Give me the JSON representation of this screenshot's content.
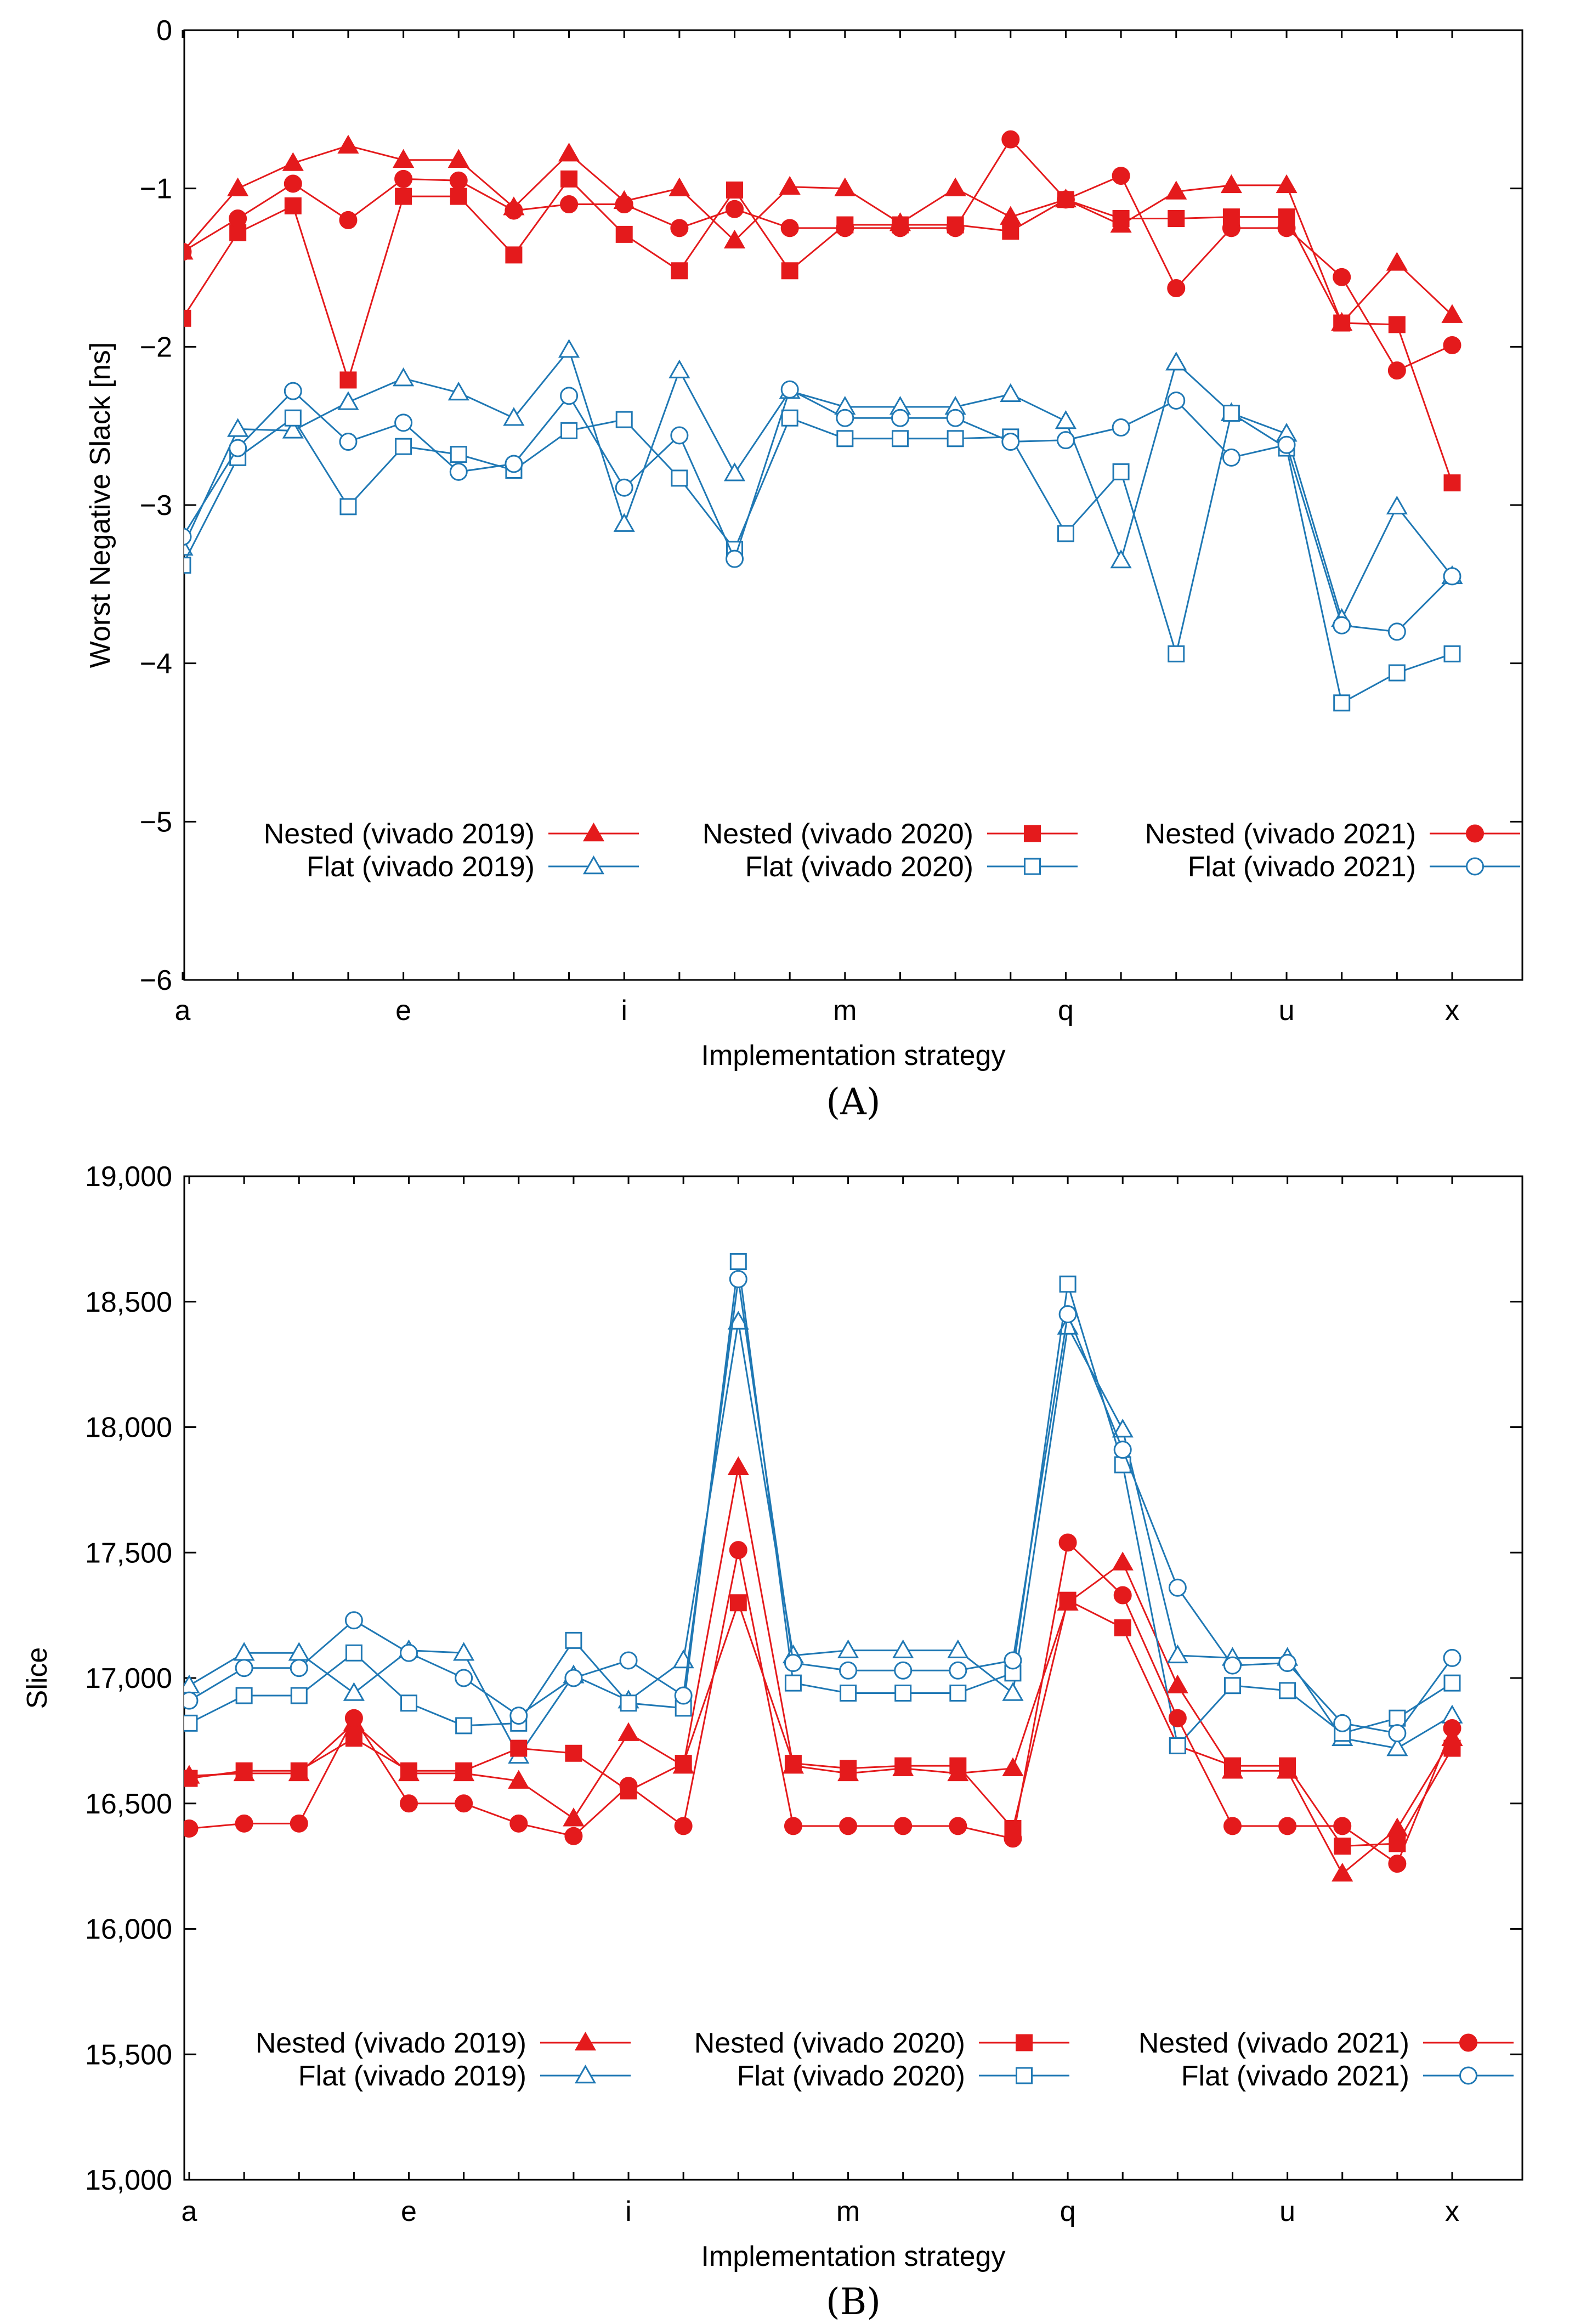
{
  "colors": {
    "nested": "#e41a1c",
    "flat": "#1f78b4"
  },
  "chart_data": [
    {
      "id": "A",
      "type": "line",
      "caption": "(A)",
      "xlabel": "Implementation strategy",
      "ylabel": "Worst Negative Slack [ns]",
      "ylim": [
        -6,
        0
      ],
      "yticks": [
        0,
        -1,
        -2,
        -3,
        -4,
        -5,
        -6
      ],
      "ytick_labels": [
        "0",
        "−1",
        "−2",
        "−3",
        "−4",
        "−5",
        "−6"
      ],
      "categories": [
        "a",
        "b",
        "c",
        "d",
        "e",
        "f",
        "g",
        "h",
        "i",
        "j",
        "k",
        "l",
        "m",
        "n",
        "o",
        "p",
        "q",
        "r",
        "s",
        "t",
        "u",
        "v",
        "w",
        "x"
      ],
      "xtick_labels": {
        "a": "a",
        "e": "e",
        "i": "i",
        "m": "m",
        "q": "q",
        "u": "u",
        "x": "x"
      },
      "grid": false,
      "legend_position": "bottom",
      "series": [
        {
          "name": "Nested (vivado 2019)",
          "group": "nested",
          "marker": "triangle",
          "filled": true,
          "values": [
            -1.4,
            -1.0,
            -0.84,
            -0.73,
            -0.82,
            -0.82,
            -1.12,
            -0.78,
            -1.08,
            -1.0,
            -1.33,
            -0.99,
            -1.0,
            -1.22,
            -1.0,
            -1.18,
            -1.07,
            -1.23,
            -1.02,
            -0.98,
            -0.98,
            -1.85,
            -1.47,
            -1.8
          ]
        },
        {
          "name": "Flat (vivado 2019)",
          "group": "flat",
          "marker": "triangle",
          "filled": false,
          "values": [
            -3.27,
            -2.52,
            -2.53,
            -2.35,
            -2.2,
            -2.29,
            -2.45,
            -2.02,
            -3.12,
            -2.15,
            -2.8,
            -2.28,
            -2.38,
            -2.38,
            -2.38,
            -2.3,
            -2.47,
            -3.35,
            -2.1,
            -2.42,
            -2.55,
            -3.72,
            -3.01,
            -3.45
          ]
        },
        {
          "name": "Nested (vivado 2020)",
          "group": "nested",
          "marker": "square",
          "filled": true,
          "values": [
            -1.82,
            -1.28,
            -1.11,
            -2.21,
            -1.05,
            -1.05,
            -1.42,
            -0.94,
            -1.29,
            -1.52,
            -1.01,
            -1.52,
            -1.23,
            -1.23,
            -1.23,
            -1.27,
            -1.07,
            -1.19,
            -1.19,
            -1.18,
            -1.18,
            -1.85,
            -1.86,
            -2.86
          ]
        },
        {
          "name": "Flat (vivado 2020)",
          "group": "flat",
          "marker": "square",
          "filled": false,
          "values": [
            -3.38,
            -2.7,
            -2.45,
            -3.01,
            -2.63,
            -2.68,
            -2.78,
            -2.53,
            -2.46,
            -2.83,
            -3.28,
            -2.45,
            -2.58,
            -2.58,
            -2.58,
            -2.57,
            -3.18,
            -2.79,
            -3.94,
            -2.42,
            -2.64,
            -4.25,
            -4.06,
            -3.94
          ]
        },
        {
          "name": "Nested (vivado 2021)",
          "group": "nested",
          "marker": "circle",
          "filled": true,
          "values": [
            -1.4,
            -1.19,
            -0.97,
            -1.2,
            -0.94,
            -0.95,
            -1.14,
            -1.1,
            -1.1,
            -1.25,
            -1.13,
            -1.25,
            -1.25,
            -1.25,
            -1.25,
            -0.69,
            -1.07,
            -0.92,
            -1.63,
            -1.25,
            -1.25,
            -1.56,
            -2.15,
            -1.99
          ]
        },
        {
          "name": "Flat (vivado 2021)",
          "group": "flat",
          "marker": "circle",
          "filled": false,
          "values": [
            -3.2,
            -2.64,
            -2.28,
            -2.6,
            -2.48,
            -2.79,
            -2.74,
            -2.31,
            -2.89,
            -2.56,
            -3.34,
            -2.27,
            -2.45,
            -2.45,
            -2.45,
            -2.6,
            -2.59,
            -2.51,
            -2.34,
            -2.7,
            -2.62,
            -3.76,
            -3.8,
            -3.45
          ]
        }
      ]
    },
    {
      "id": "B",
      "type": "line",
      "caption": "(B)",
      "xlabel": "Implementation strategy",
      "ylabel": "Slice",
      "ylim": [
        15000,
        19000
      ],
      "yticks": [
        19000,
        18500,
        18000,
        17500,
        17000,
        16500,
        16000,
        15500,
        15000
      ],
      "ytick_labels": [
        "19,000",
        "18,500",
        "18,000",
        "17,500",
        "17,000",
        "16,500",
        "16,000",
        "15,500",
        "15,000"
      ],
      "categories": [
        "a",
        "b",
        "c",
        "d",
        "e",
        "f",
        "g",
        "h",
        "i",
        "j",
        "k",
        "l",
        "m",
        "n",
        "o",
        "p",
        "q",
        "r",
        "s",
        "t",
        "u",
        "v",
        "w",
        "x"
      ],
      "xtick_labels": {
        "a": "a",
        "e": "e",
        "i": "i",
        "m": "m",
        "q": "q",
        "u": "u",
        "x": "x"
      },
      "grid": false,
      "legend_position": "bottom",
      "series": [
        {
          "name": "Nested (vivado 2019)",
          "group": "nested",
          "marker": "triangle",
          "filled": true,
          "values": [
            16610,
            16620,
            16620,
            16820,
            16620,
            16620,
            16590,
            16440,
            16780,
            16650,
            17840,
            16650,
            16620,
            16640,
            16620,
            16640,
            17300,
            17460,
            16970,
            16630,
            16630,
            16220,
            16400,
            16760
          ]
        },
        {
          "name": "Flat (vivado 2019)",
          "group": "flat",
          "marker": "triangle",
          "filled": false,
          "values": [
            16970,
            17100,
            17100,
            16940,
            17110,
            17100,
            16690,
            17010,
            16910,
            17070,
            18420,
            17090,
            17110,
            17110,
            17110,
            16940,
            18400,
            17990,
            17090,
            17080,
            17080,
            16760,
            16720,
            16850
          ]
        },
        {
          "name": "Nested (vivado 2020)",
          "group": "nested",
          "marker": "square",
          "filled": true,
          "values": [
            16600,
            16630,
            16630,
            16760,
            16630,
            16630,
            16720,
            16700,
            16550,
            16660,
            17300,
            16660,
            16640,
            16650,
            16650,
            16400,
            17310,
            17200,
            16730,
            16650,
            16650,
            16330,
            16340,
            16720
          ]
        },
        {
          "name": "Flat (vivado 2020)",
          "group": "flat",
          "marker": "square",
          "filled": false,
          "values": [
            16820,
            16930,
            16930,
            17100,
            16900,
            16810,
            16820,
            17150,
            16900,
            16880,
            18660,
            16980,
            16940,
            16940,
            16940,
            17020,
            18570,
            17850,
            16730,
            16970,
            16950,
            16780,
            16840,
            16980
          ]
        },
        {
          "name": "Nested (vivado 2021)",
          "group": "nested",
          "marker": "circle",
          "filled": true,
          "values": [
            16400,
            16420,
            16420,
            16840,
            16500,
            16500,
            16420,
            16370,
            16570,
            16410,
            17510,
            16410,
            16410,
            16410,
            16410,
            16360,
            17540,
            17330,
            16840,
            16410,
            16410,
            16410,
            16260,
            16800
          ]
        },
        {
          "name": "Flat (vivado 2021)",
          "group": "flat",
          "marker": "circle",
          "filled": false,
          "values": [
            16910,
            17040,
            17040,
            17230,
            17100,
            17000,
            16850,
            17000,
            17070,
            16930,
            18590,
            17060,
            17030,
            17030,
            17030,
            17070,
            18450,
            17910,
            17360,
            17050,
            17060,
            16820,
            16780,
            17080
          ]
        }
      ]
    }
  ]
}
